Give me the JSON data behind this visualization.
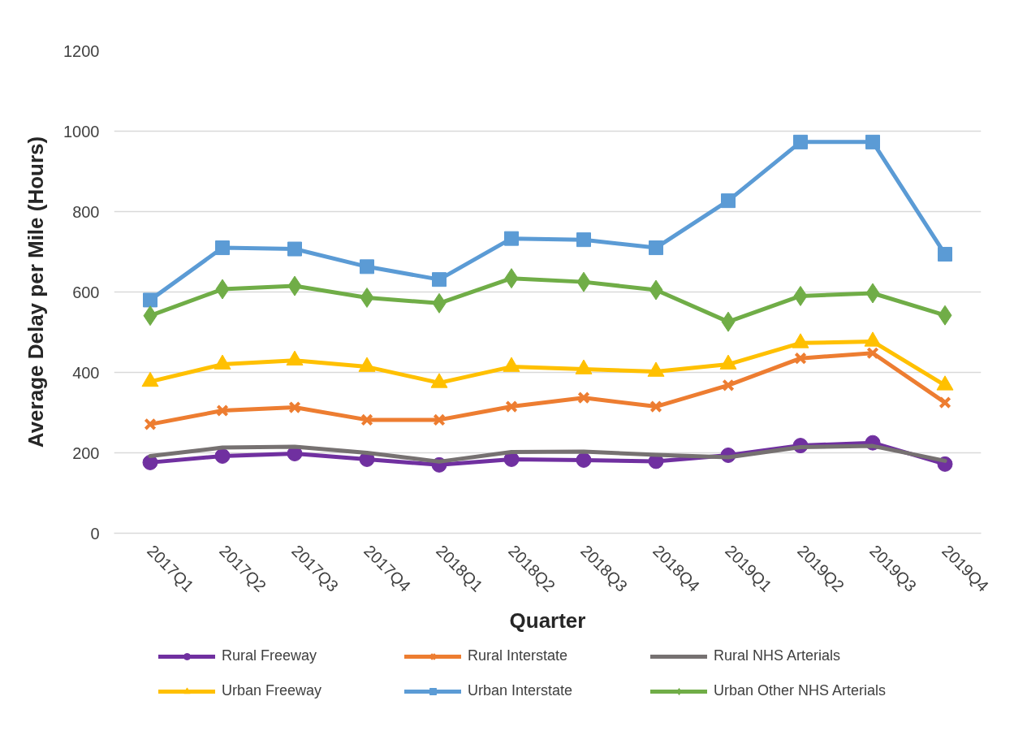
{
  "chart_data": {
    "type": "line",
    "xlabel": "Quarter",
    "ylabel": "Average Delay per Mile (Hours)",
    "categories": [
      "2017Q1",
      "2017Q2",
      "2017Q3",
      "2017Q4",
      "2018Q1",
      "2018Q2",
      "2018Q3",
      "2018Q4",
      "2019Q1",
      "2019Q2",
      "2019Q3",
      "2019Q4"
    ],
    "ylim": [
      0,
      1200
    ],
    "yticks": [
      0,
      200,
      400,
      600,
      800,
      1000,
      1200
    ],
    "grid": "y",
    "legend": "bottom",
    "line_style": "solid",
    "series": [
      {
        "name": "Rural Freeway",
        "color": "#7030a0",
        "marker": "circle",
        "values": [
          176,
          192,
          198,
          184,
          170,
          184,
          182,
          179,
          194,
          218,
          225,
          172
        ]
      },
      {
        "name": "Rural Interstate",
        "color": "#ed7d31",
        "marker": "cross",
        "values": [
          271,
          305,
          313,
          282,
          282,
          315,
          337,
          315,
          368,
          435,
          448,
          325
        ]
      },
      {
        "name": "Rural NHS Arterials",
        "color": "#767171",
        "marker": "none",
        "values": [
          192,
          213,
          215,
          200,
          178,
          202,
          203,
          195,
          189,
          214,
          217,
          180
        ]
      },
      {
        "name": "Urban Freeway",
        "color": "#ffc000",
        "marker": "triangle",
        "values": [
          377,
          420,
          430,
          414,
          374,
          414,
          408,
          402,
          420,
          473,
          477,
          368
        ]
      },
      {
        "name": "Urban Interstate",
        "color": "#5b9bd5",
        "marker": "square",
        "values": [
          580,
          710,
          707,
          663,
          631,
          733,
          730,
          710,
          827,
          973,
          973,
          694
        ]
      },
      {
        "name": "Urban Other NHS Arterials",
        "color": "#70ad47",
        "marker": "diamond",
        "values": [
          541,
          607,
          615,
          586,
          572,
          634,
          625,
          605,
          526,
          590,
          597,
          542
        ]
      }
    ]
  }
}
